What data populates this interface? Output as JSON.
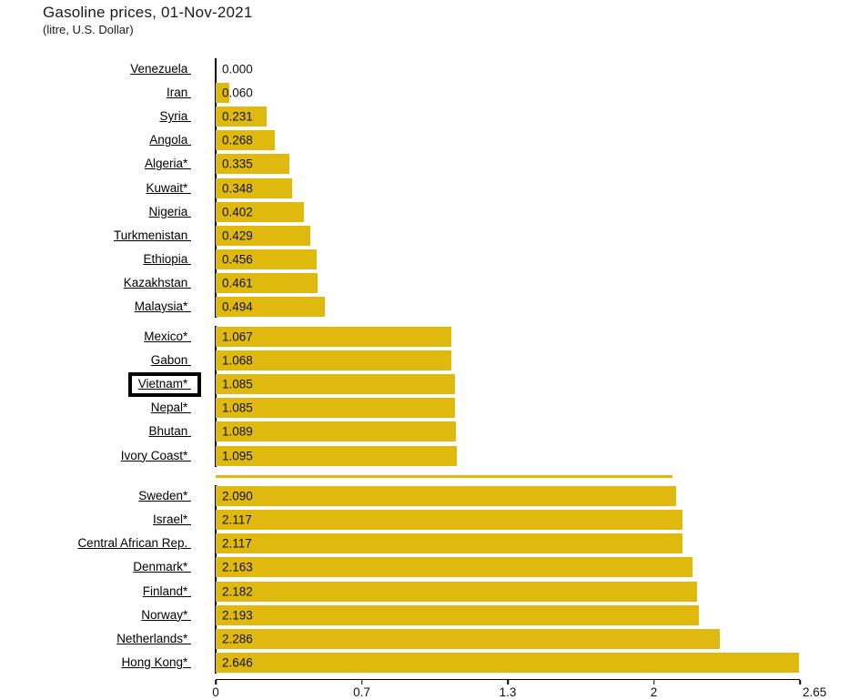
{
  "header": {
    "title": "Gasoline prices, 01-Nov-2021",
    "subtitle": "(litre, U.S. Dollar)"
  },
  "colors": {
    "bar": "#e0b90e",
    "axis": "#000000",
    "text": "#1a1a1a",
    "highlight_border": "#000000"
  },
  "chart_data": {
    "type": "bar",
    "orientation": "horizontal",
    "title": "Gasoline prices, 01-Nov-2021",
    "subtitle": "(litre, U.S. Dollar)",
    "xlim": [
      0,
      2.65
    ],
    "x_ticks": [
      {
        "label": "0",
        "pos": 0
      },
      {
        "label": "0.7",
        "pos": 25
      },
      {
        "label": "1.3",
        "pos": 50
      },
      {
        "label": "2",
        "pos": 75
      },
      {
        "label": "2.65",
        "pos": 100
      }
    ],
    "bar_color": "#e0b90e",
    "highlighted_label": "Vietnam*",
    "legend": "none",
    "grid": false,
    "groups": [
      {
        "rows": [
          {
            "label": "Venezuela",
            "value": 0.0,
            "display": "0.000"
          },
          {
            "label": "Iran",
            "value": 0.06,
            "display": "0.060"
          },
          {
            "label": "Syria",
            "value": 0.231,
            "display": "0.231"
          },
          {
            "label": "Angola",
            "value": 0.268,
            "display": "0.268"
          },
          {
            "label": "Algeria*",
            "value": 0.335,
            "display": "0.335"
          },
          {
            "label": "Kuwait*",
            "value": 0.348,
            "display": "0.348"
          },
          {
            "label": "Nigeria",
            "value": 0.402,
            "display": "0.402"
          },
          {
            "label": "Turkmenistan",
            "value": 0.429,
            "display": "0.429"
          },
          {
            "label": "Ethiopia",
            "value": 0.456,
            "display": "0.456"
          },
          {
            "label": "Kazakhstan",
            "value": 0.461,
            "display": "0.461"
          },
          {
            "label": "Malaysia*",
            "value": 0.494,
            "display": "0.494"
          }
        ]
      },
      {
        "rows": [
          {
            "label": "Mexico*",
            "value": 1.067,
            "display": "1.067"
          },
          {
            "label": "Gabon",
            "value": 1.068,
            "display": "1.068"
          },
          {
            "label": "Vietnam*",
            "value": 1.085,
            "display": "1.085",
            "highlighted": true
          },
          {
            "label": "Nepal*",
            "value": 1.085,
            "display": "1.085"
          },
          {
            "label": "Bhutan",
            "value": 1.089,
            "display": "1.089"
          },
          {
            "label": "Ivory Coast*",
            "value": 1.095,
            "display": "1.095"
          }
        ]
      },
      {
        "rows": [
          {
            "label": "Sweden*",
            "value": 2.09,
            "display": "2.090"
          },
          {
            "label": "Israel*",
            "value": 2.117,
            "display": "2.117"
          },
          {
            "label": "Central African Rep.",
            "value": 2.117,
            "display": "2.117"
          },
          {
            "label": "Denmark*",
            "value": 2.163,
            "display": "2.163"
          },
          {
            "label": "Finland*",
            "value": 2.182,
            "display": "2.182"
          },
          {
            "label": "Norway*",
            "value": 2.193,
            "display": "2.193"
          },
          {
            "label": "Netherlands*",
            "value": 2.286,
            "display": "2.286"
          },
          {
            "label": "Hong Kong*",
            "value": 2.646,
            "display": "2.646"
          }
        ]
      }
    ],
    "separator_bar": {
      "value": 2.07
    }
  }
}
